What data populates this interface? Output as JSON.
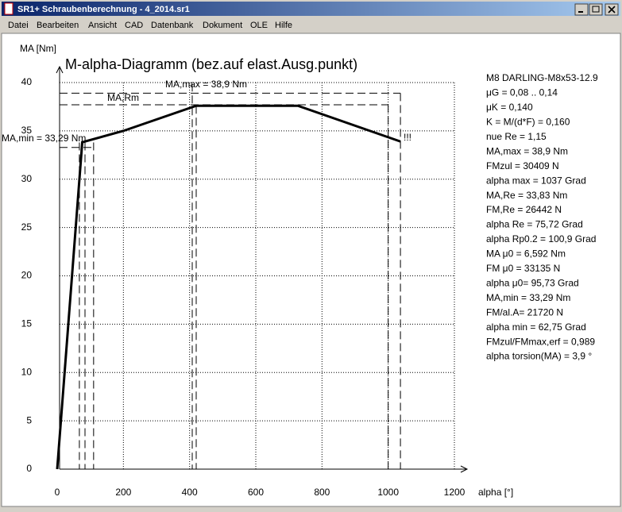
{
  "window": {
    "title": "SR1+  Schraubenberechnung - 4_2014.sr1"
  },
  "menu": {
    "items": [
      "Datei",
      "Bearbeiten",
      "Ansicht",
      "CAD",
      "Datenbank",
      "Dokument",
      "OLE",
      "Hilfe"
    ]
  },
  "chart_data": {
    "type": "line",
    "title": "M-alpha-Diagramm (bez.auf elast.Ausg.punkt)",
    "x_label": "alpha [°]",
    "y_label": "MA [Nm]",
    "x": [
      0,
      75.72,
      200,
      420,
      727,
      1037
    ],
    "series": [
      {
        "color": "#000000",
        "values": [
          0,
          33.83,
          35,
          37.6,
          37.6,
          33.9
        ]
      }
    ],
    "xlim": [
      0,
      1200
    ],
    "ylim": [
      0,
      40
    ],
    "xticks": [
      0,
      200,
      400,
      600,
      800,
      1000,
      1200
    ],
    "yticks": [
      0,
      5,
      10,
      15,
      20,
      25,
      30,
      35,
      40
    ],
    "grid": true,
    "hlines": [
      {
        "label": "MA,max = 38,9 Nm",
        "value": 38.9,
        "x_end": 1037
      },
      {
        "label": "MA,Rm",
        "value": 37.7,
        "x_end": 1000
      },
      {
        "label": "MA,min = 33,29 Nm",
        "value": 33.29,
        "x_end": 110
      }
    ],
    "vlines": [
      {
        "x": 67,
        "y_top": 33.8
      },
      {
        "x": 84,
        "y_top": 33.8
      },
      {
        "x": 110,
        "y_top": 33.8
      },
      {
        "x": 408,
        "y_top": 39.9
      },
      {
        "x": 420,
        "y_top": 37.6
      },
      {
        "x": 1000,
        "y_top": 37.7
      },
      {
        "x": 1037,
        "y_top": 38.9
      }
    ],
    "note": "!!!"
  },
  "info": {
    "lines": [
      "M8 DARLING-M8x53-12.9",
      "μG = 0,08 .. 0,14",
      "μK = 0,140",
      "K = M/(d*F) = 0,160",
      "nue Re = 1,15",
      "MA,max = 38,9 Nm",
      "FMzul = 30409 N",
      "alpha max = 1037 Grad",
      "MA,Re = 33,83 Nm",
      "FM,Re = 26442 N",
      "alpha Re = 75,72 Grad",
      "alpha Rp0.2 = 100,9 Grad",
      "MA μ0 = 6,592 Nm",
      "FM μ0 = 33135 N",
      "alpha μ0= 95,73 Grad",
      "MA,min = 33,29 Nm",
      "FM/al.A= 21720 N",
      "alpha min = 62,75 Grad",
      "FMzul/FMmax,erf = 0,989",
      "alpha torsion(MA) = 3,9 °"
    ]
  }
}
